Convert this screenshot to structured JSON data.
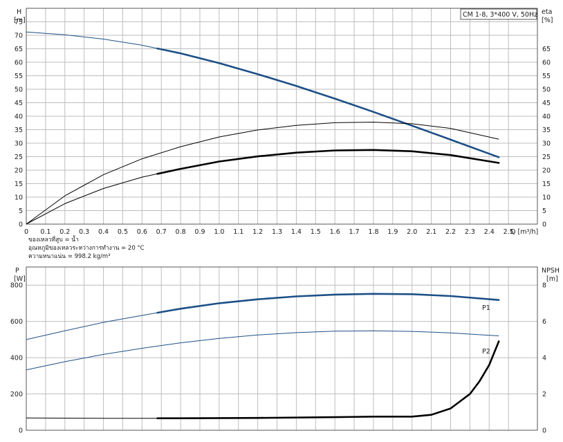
{
  "notes": {
    "liquid": "ของเหลวที่สูบ = น้ำ",
    "temperature": "อุณหภูมิของเหลวระหว่างการทำงาน = 20 °C",
    "density": "ความหนาแน่น = 998.2 kg/m³"
  },
  "colors": {
    "blue": "#1c4f86",
    "black": "#000000",
    "grid": "#bdbdbd",
    "frame": "#555555"
  },
  "chart_data": [
    {
      "type": "line",
      "title": "CM 1-8, 3*400 V, 50Hz",
      "ylabel": "H",
      "yunit": "[m]",
      "y2label": "eta",
      "y2unit": "[%]",
      "xlabel": "Q [m³/h]",
      "xlim": [
        0,
        2.65
      ],
      "ylim": [
        0,
        80
      ],
      "x_ticks": [
        "0",
        "0.1",
        "0.2",
        "0.3",
        "0.4",
        "0.5",
        "0.6",
        "0.7",
        "0.8",
        "0.9",
        "1.0",
        "1.1",
        "1.2",
        "1.3",
        "1.4",
        "1.5",
        "1.6",
        "1.7",
        "1.8",
        "1.9",
        "2.0",
        "2.1",
        "2.2",
        "2.3",
        "2.4",
        "2.5"
      ],
      "y_ticks": [
        "0",
        "5",
        "10",
        "15",
        "20",
        "25",
        "30",
        "35",
        "40",
        "45",
        "50",
        "55",
        "60",
        "65",
        "70",
        "75"
      ],
      "y2_ticks": [
        "0",
        "5",
        "10",
        "15",
        "20",
        "25",
        "30",
        "35",
        "40",
        "45",
        "50",
        "55",
        "60",
        "65"
      ],
      "grid": true,
      "series": [
        {
          "role": "head-curve",
          "axis": "left",
          "color": "blue",
          "operating_from": 0.68,
          "x": [
            0,
            0.2,
            0.4,
            0.6,
            0.8,
            1.0,
            1.2,
            1.4,
            1.6,
            1.8,
            2.0,
            2.2,
            2.45
          ],
          "y": [
            71.2,
            70.2,
            68.6,
            66.3,
            63.3,
            59.7,
            55.6,
            51.2,
            46.5,
            41.6,
            36.5,
            31.3,
            24.8
          ]
        },
        {
          "role": "efficiency-curve-thin",
          "axis": "right",
          "color": "black",
          "operating_from": 99,
          "x": [
            0,
            0.2,
            0.4,
            0.6,
            0.8,
            1.0,
            1.2,
            1.4,
            1.6,
            1.8,
            2.0,
            2.2,
            2.45
          ],
          "y": [
            0,
            10.5,
            18.3,
            24.2,
            28.7,
            32.3,
            34.9,
            36.6,
            37.6,
            37.8,
            37.2,
            35.5,
            31.5
          ]
        },
        {
          "role": "efficiency-curve-bold",
          "axis": "right",
          "color": "black",
          "operating_from": 0.68,
          "x": [
            0,
            0.2,
            0.4,
            0.6,
            0.8,
            1.0,
            1.2,
            1.4,
            1.6,
            1.8,
            2.0,
            2.2,
            2.45
          ],
          "y": [
            0,
            7.6,
            13.2,
            17.4,
            20.5,
            23.2,
            25.1,
            26.5,
            27.3,
            27.5,
            27.0,
            25.6,
            22.7
          ]
        }
      ]
    },
    {
      "type": "line",
      "ylabel": "P",
      "yunit": "[W]",
      "y2label": "NPSH",
      "y2unit": "[m]",
      "xlim": [
        0,
        2.65
      ],
      "ylim": [
        0,
        900
      ],
      "y_ticks": [
        "0",
        "200",
        "400",
        "600",
        "800"
      ],
      "y2_ticks": [
        "0",
        "2",
        "4",
        "6",
        "8"
      ],
      "grid": true,
      "series": [
        {
          "name": "P1",
          "axis": "left",
          "color": "blue",
          "operating_from": 0.68,
          "x": [
            0,
            0.2,
            0.4,
            0.6,
            0.8,
            1.0,
            1.2,
            1.4,
            1.6,
            1.8,
            2.0,
            2.2,
            2.45
          ],
          "y": [
            500,
            548,
            595,
            633,
            670,
            700,
            722,
            738,
            748,
            752,
            750,
            740,
            718
          ]
        },
        {
          "name": "P2",
          "axis": "left",
          "color": "blue",
          "operating_from": 99,
          "x": [
            0,
            0.2,
            0.4,
            0.6,
            0.8,
            1.0,
            1.2,
            1.4,
            1.6,
            1.8,
            2.0,
            2.2,
            2.45
          ],
          "y": [
            333,
            378,
            418,
            452,
            482,
            506,
            525,
            538,
            546,
            548,
            545,
            537,
            520
          ]
        },
        {
          "role": "npsh-curve",
          "axis": "right",
          "color": "black",
          "operating_from": 0.68,
          "x": [
            0,
            0.4,
            0.8,
            1.2,
            1.6,
            1.8,
            2.0,
            2.1,
            2.2,
            2.3,
            2.35,
            2.4,
            2.45
          ],
          "y": [
            0.68,
            0.66,
            0.66,
            0.68,
            0.72,
            0.75,
            0.75,
            0.85,
            1.2,
            2.0,
            2.7,
            3.6,
            4.9
          ]
        }
      ]
    }
  ]
}
